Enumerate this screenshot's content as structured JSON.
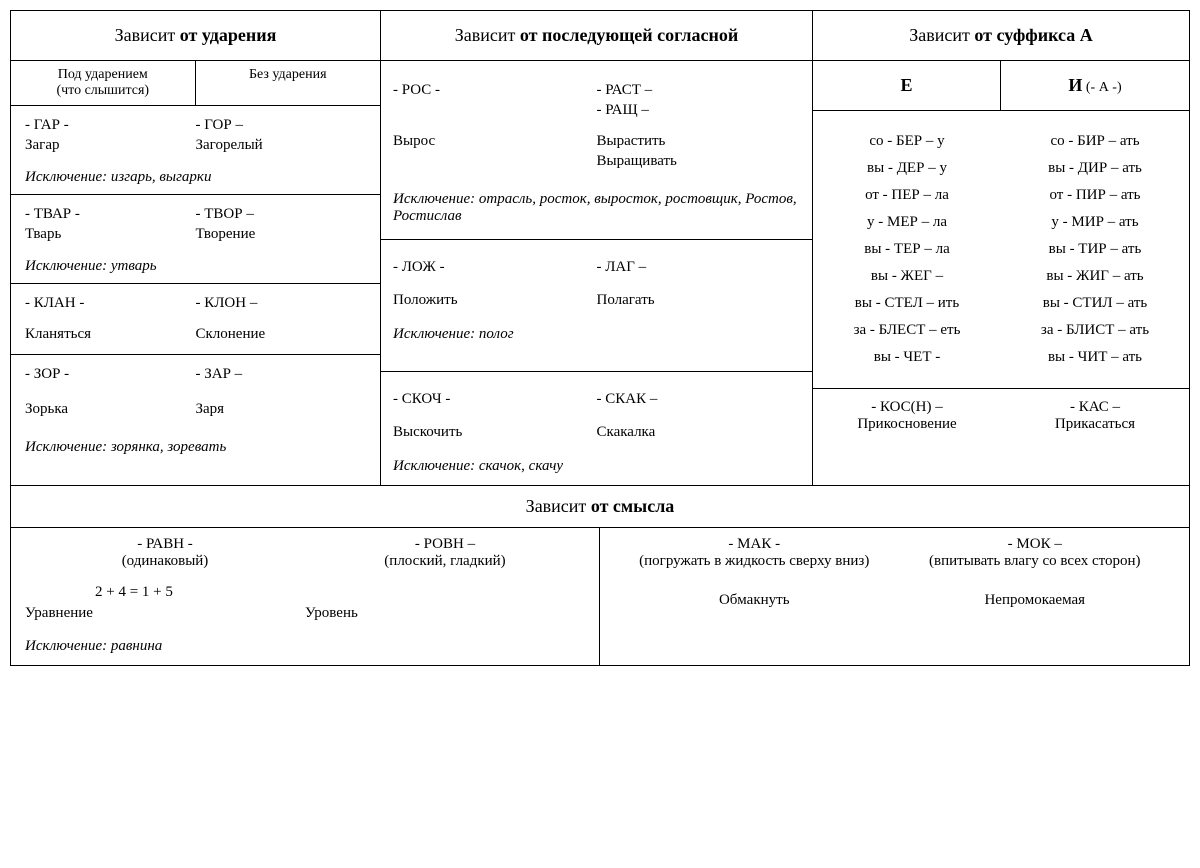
{
  "headers": {
    "col1_prefix": "Зависит ",
    "col1_bold": "от ударения",
    "col2_prefix": "Зависит ",
    "col2_bold": "от последующей согласной",
    "col3_prefix": "Зависит ",
    "col3_bold": "от суффикса А",
    "footer_prefix": "Зависит ",
    "footer_bold": "от смысла"
  },
  "col1": {
    "sub_left": "Под ударением\n(что слышится)",
    "sub_right": "Без ударения",
    "block1": {
      "left_root": "- ГАР -",
      "left_ex": "Загар",
      "right_root": "- ГОР –",
      "right_ex": "Загорелый",
      "exc": "Исключение: изгарь, выгарки"
    },
    "block2": {
      "left_root": "- ТВАР -",
      "left_ex": "Тварь",
      "right_root": "- ТВОР –",
      "right_ex": "Творение",
      "exc": "Исключение: утварь"
    },
    "block3": {
      "left_root": "- КЛАН -",
      "left_ex": "Кланяться",
      "right_root": "- КЛОН –",
      "right_ex": "Склонение"
    },
    "block4": {
      "left_root": "- ЗОР -",
      "left_ex": "Зорька",
      "right_root": "- ЗАР –",
      "right_ex": "Заря",
      "exc": "Исключение: зорянка, зоревать"
    }
  },
  "col2": {
    "block1": {
      "left_root": "- РОС -",
      "left_ex": "Вырос",
      "right_root1": "- РАСТ –",
      "right_root2": "- РАЩ –",
      "right_ex1": "Вырастить",
      "right_ex2": "Выращивать",
      "exc": "Исключение: отрасль, росток, выросток, ростовщик, Ростов, Ростислав"
    },
    "block2": {
      "left_root": "- ЛОЖ -",
      "left_ex": "Положить",
      "right_root": "- ЛАГ –",
      "right_ex": "Полагать",
      "exc": "Исключение: полог"
    },
    "block3": {
      "left_root": "- СКОЧ -",
      "left_ex": "Выскочить",
      "right_root": "- СКАК –",
      "right_ex": "Скакалка",
      "exc": "Исключение: скачок, скачу"
    }
  },
  "col3": {
    "head_left": "Е",
    "head_right": "И",
    "head_right_sub": " (- А -)",
    "left": [
      "со - БЕР – у",
      "вы - ДЕР – у",
      "от - ПЕР – ла",
      "у - МЕР – ла",
      "вы - ТЕР – ла",
      "вы - ЖЕГ –",
      "вы - СТЕЛ – ить",
      "за - БЛЕСТ – еть",
      "вы - ЧЕТ -"
    ],
    "right": [
      "со - БИР – ать",
      "вы - ДИР – ать",
      "от - ПИР – ать",
      "у - МИР – ать",
      "вы - ТИР – ать",
      "вы - ЖИГ – ать",
      "вы - СТИЛ – ать",
      "за - БЛИСТ – ать",
      "вы - ЧИТ – ать"
    ],
    "bottom_left_root": "- КОС(Н) –",
    "bottom_left_ex": "Прикосновение",
    "bottom_right_root": "- КАС –",
    "bottom_right_ex": "Прикасаться"
  },
  "footer": {
    "left": {
      "l_root": "- РАВН -",
      "l_note": "(одинаковый)",
      "r_root": "- РОВН –",
      "r_note": "(плоский, гладкий)",
      "eq": "2 + 4 = 1 + 5",
      "l_ex": "Уравнение",
      "r_ex": "Уровень",
      "exc": "Исключение: равнина"
    },
    "right": {
      "l_root": "- МАК -",
      "l_note": "(погружать в жидкость сверху вниз)",
      "r_root": "- МОК –",
      "r_note": "(впитывать влагу со всех сторон)",
      "l_ex": "Обмакнуть",
      "r_ex": "Непромокаемая"
    }
  }
}
